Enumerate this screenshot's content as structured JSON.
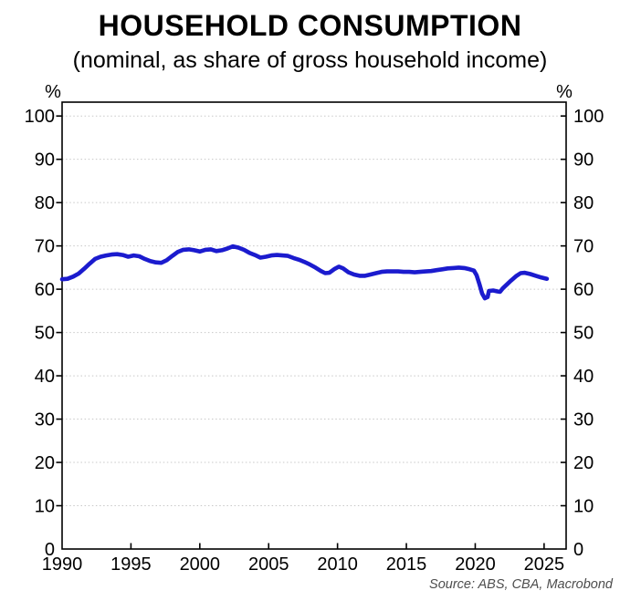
{
  "header": {
    "title": "HOUSEHOLD CONSUMPTION",
    "subtitle": "(nominal, as share of gross household income)"
  },
  "axes": {
    "unit_left": "%",
    "unit_right": "%"
  },
  "footer": {
    "source": "Source: ABS, CBA, Macrobond"
  },
  "colors": {
    "line": "#1b1bce",
    "grid": "#c8c8c8",
    "axis": "#000000",
    "source_text": "#4d4d4d",
    "background": "#ffffff"
  },
  "chart_data": {
    "type": "line",
    "title": "HOUSEHOLD CONSUMPTION",
    "subtitle": "(nominal, as share of gross household income)",
    "source": "Source: ABS, CBA, Macrobond",
    "unit_left": "%",
    "unit_right": "%",
    "xlim": [
      1990,
      2026.6
    ],
    "ylim": [
      0,
      103.2
    ],
    "x_ticks": [
      1990,
      1995,
      2000,
      2005,
      2010,
      2015,
      2020,
      2025
    ],
    "y_ticks": [
      0,
      10,
      20,
      30,
      40,
      50,
      60,
      70,
      80,
      90,
      100
    ],
    "grid": "horizontal-dotted",
    "legend_position": "none",
    "line_color": "#1b1bce",
    "series": [
      {
        "name": "Household consumption as share of gross household income",
        "color": "#1b1bce",
        "points": [
          [
            1990.0,
            62.3
          ],
          [
            1990.4,
            62.4
          ],
          [
            1990.8,
            62.9
          ],
          [
            1991.2,
            63.6
          ],
          [
            1991.6,
            64.7
          ],
          [
            1992.0,
            65.9
          ],
          [
            1992.4,
            67.0
          ],
          [
            1992.8,
            67.5
          ],
          [
            1993.2,
            67.8
          ],
          [
            1993.6,
            68.0
          ],
          [
            1994.0,
            68.1
          ],
          [
            1994.4,
            67.9
          ],
          [
            1994.8,
            67.5
          ],
          [
            1995.2,
            67.8
          ],
          [
            1995.6,
            67.6
          ],
          [
            1996.0,
            67.0
          ],
          [
            1996.4,
            66.5
          ],
          [
            1996.8,
            66.2
          ],
          [
            1997.2,
            66.1
          ],
          [
            1997.6,
            66.7
          ],
          [
            1998.0,
            67.7
          ],
          [
            1998.4,
            68.6
          ],
          [
            1998.8,
            69.1
          ],
          [
            1999.2,
            69.2
          ],
          [
            1999.6,
            69.0
          ],
          [
            2000.0,
            68.7
          ],
          [
            2000.4,
            69.1
          ],
          [
            2000.8,
            69.2
          ],
          [
            2001.2,
            68.8
          ],
          [
            2001.6,
            69.0
          ],
          [
            2002.0,
            69.4
          ],
          [
            2002.4,
            69.9
          ],
          [
            2002.8,
            69.6
          ],
          [
            2003.2,
            69.1
          ],
          [
            2003.6,
            68.4
          ],
          [
            2004.0,
            67.9
          ],
          [
            2004.4,
            67.3
          ],
          [
            2004.8,
            67.5
          ],
          [
            2005.2,
            67.8
          ],
          [
            2005.6,
            67.9
          ],
          [
            2006.0,
            67.8
          ],
          [
            2006.4,
            67.7
          ],
          [
            2006.8,
            67.2
          ],
          [
            2007.2,
            66.8
          ],
          [
            2007.6,
            66.3
          ],
          [
            2008.0,
            65.7
          ],
          [
            2008.4,
            65.0
          ],
          [
            2008.8,
            64.2
          ],
          [
            2009.1,
            63.7
          ],
          [
            2009.4,
            63.8
          ],
          [
            2009.8,
            64.7
          ],
          [
            2010.1,
            65.2
          ],
          [
            2010.4,
            64.8
          ],
          [
            2010.8,
            63.9
          ],
          [
            2011.2,
            63.4
          ],
          [
            2011.6,
            63.1
          ],
          [
            2012.0,
            63.1
          ],
          [
            2012.4,
            63.4
          ],
          [
            2012.8,
            63.7
          ],
          [
            2013.2,
            64.0
          ],
          [
            2013.6,
            64.1
          ],
          [
            2014.0,
            64.1
          ],
          [
            2014.4,
            64.1
          ],
          [
            2014.8,
            64.0
          ],
          [
            2015.2,
            64.0
          ],
          [
            2015.6,
            63.9
          ],
          [
            2016.0,
            64.0
          ],
          [
            2016.4,
            64.1
          ],
          [
            2016.8,
            64.2
          ],
          [
            2017.2,
            64.4
          ],
          [
            2017.6,
            64.6
          ],
          [
            2018.0,
            64.8
          ],
          [
            2018.4,
            64.9
          ],
          [
            2018.8,
            65.0
          ],
          [
            2019.2,
            64.9
          ],
          [
            2019.6,
            64.6
          ],
          [
            2019.9,
            64.3
          ],
          [
            2020.1,
            63.2
          ],
          [
            2020.3,
            61.2
          ],
          [
            2020.5,
            59.0
          ],
          [
            2020.7,
            57.9
          ],
          [
            2020.9,
            58.2
          ],
          [
            2021.0,
            59.6
          ],
          [
            2021.3,
            59.7
          ],
          [
            2021.6,
            59.5
          ],
          [
            2021.8,
            59.4
          ],
          [
            2022.0,
            60.2
          ],
          [
            2022.3,
            61.1
          ],
          [
            2022.6,
            62.0
          ],
          [
            2023.0,
            63.1
          ],
          [
            2023.3,
            63.7
          ],
          [
            2023.6,
            63.8
          ],
          [
            2024.0,
            63.5
          ],
          [
            2024.4,
            63.1
          ],
          [
            2024.8,
            62.7
          ],
          [
            2025.2,
            62.4
          ]
        ]
      }
    ]
  }
}
